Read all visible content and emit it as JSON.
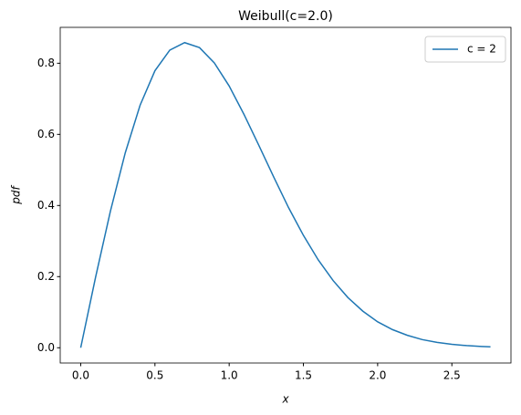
{
  "chart_data": {
    "type": "line",
    "title": "Weibull(c=2.0)",
    "x_label": "x",
    "y_label": "pdf",
    "x": [
      0,
      0.1,
      0.2,
      0.3,
      0.4,
      0.5,
      0.6,
      0.7,
      0.8,
      0.9,
      1.0,
      1.1,
      1.2,
      1.3,
      1.4,
      1.5,
      1.6,
      1.7,
      1.8,
      1.9,
      2.0,
      2.1,
      2.2,
      2.3,
      2.4,
      2.5,
      2.6,
      2.7,
      2.76
    ],
    "series": [
      {
        "name": "c = 2",
        "color": "#1f77b4",
        "values": [
          0,
          0.198,
          0.384,
          0.548,
          0.682,
          0.779,
          0.837,
          0.858,
          0.844,
          0.801,
          0.736,
          0.656,
          0.569,
          0.48,
          0.394,
          0.316,
          0.247,
          0.189,
          0.141,
          0.103,
          0.073,
          0.051,
          0.035,
          0.023,
          0.015,
          0.0097,
          0.006,
          0.0037,
          0.0027
        ]
      }
    ],
    "xlim": [
      -0.138,
      2.898
    ],
    "ylim": [
      -0.0429,
      0.9009
    ],
    "xticks": [
      {
        "value": 0,
        "label": "0.0"
      },
      0.5,
      {
        "value": 1,
        "label": "1.0"
      },
      1.5,
      {
        "value": 2,
        "label": "2.0"
      },
      2.5
    ],
    "yticks": [
      {
        "value": 0,
        "label": "0.0"
      },
      0.2,
      0.4,
      0.6,
      0.8
    ],
    "legend": "upper right"
  }
}
